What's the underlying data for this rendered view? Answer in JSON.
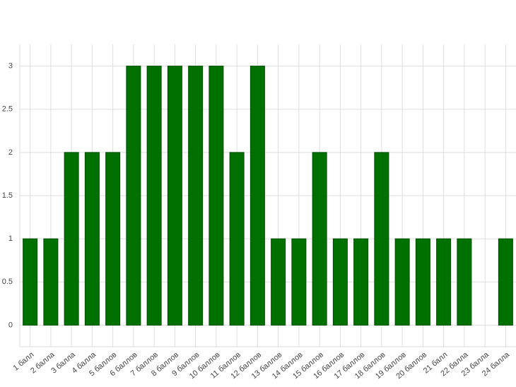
{
  "chart_data": {
    "type": "bar",
    "categories": [
      "1 балл",
      "2 балла",
      "3 балла",
      "4 балла",
      "5 баллов",
      "6 баллов",
      "7 баллов",
      "8 баллов",
      "9 баллов",
      "10 баллов",
      "11 баллов",
      "12 баллов",
      "13 баллов",
      "14 баллов",
      "15 баллов",
      "16 баллов",
      "17 баллов",
      "18 баллов",
      "19 баллов",
      "20 баллов",
      "21 балл",
      "22 балла",
      "23 балла",
      "24 балла"
    ],
    "values": [
      1,
      1,
      2,
      2,
      2,
      3,
      3,
      3,
      3,
      3,
      2,
      3,
      1,
      1,
      2,
      1,
      1,
      2,
      1,
      1,
      1,
      1,
      0,
      1
    ],
    "color": "#007000",
    "ylim": [
      -0.25,
      3.25
    ],
    "yticks": [
      0,
      0.5,
      1,
      1.5,
      2,
      2.5,
      3
    ],
    "grid": true
  }
}
